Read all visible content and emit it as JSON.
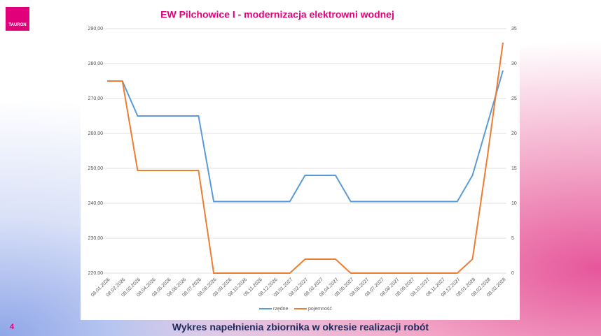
{
  "logo": "TAURON",
  "page_number": "4",
  "footer": "Wykres napełnienia zbiornika w okresie realizacji robót",
  "chart_data": {
    "type": "line",
    "title": "EW Pilchowice I - modernizacja elektrowni wodnej",
    "categories": [
      "08.01.2026",
      "08.02.2026",
      "08.03.2026",
      "08.04.2026",
      "08.05.2026",
      "08.06.2026",
      "08.07.2026",
      "08.08.2026",
      "08.09.2026",
      "08.10.2026",
      "08.11.2026",
      "08.12.2026",
      "08.01.2027",
      "08.02.2027",
      "08.03.2027",
      "08.04.2027",
      "08.05.2027",
      "08.06.2027",
      "08.07.2027",
      "08.08.2027",
      "08.09.2027",
      "08.10.2027",
      "08.11.2027",
      "08.12.2027",
      "08.01.2028",
      "08.02.2028",
      "08.03.2028"
    ],
    "series": [
      {
        "name": "rzędne",
        "color": "#5b9bd5",
        "values": [
          275,
          275,
          265,
          265,
          265,
          265,
          265,
          240.5,
          240.5,
          240.5,
          240.5,
          240.5,
          240.5,
          248,
          248,
          248,
          240.5,
          240.5,
          240.5,
          240.5,
          240.5,
          240.5,
          240.5,
          240.5,
          248,
          263,
          278
        ]
      },
      {
        "name": "pojemność",
        "color": "#ed7d31",
        "axis": "y2",
        "values": [
          27.5,
          27.5,
          14.7,
          14.7,
          14.7,
          14.7,
          14.7,
          0,
          0,
          0,
          0,
          0,
          0,
          2,
          2,
          2,
          0,
          0,
          0,
          0,
          0,
          0,
          0,
          0,
          2,
          17,
          33
        ]
      }
    ],
    "ylim": [
      220,
      290
    ],
    "yticks": [
      {
        "value": 220,
        "label": "220,00"
      },
      {
        "value": 230,
        "label": "230,00"
      },
      {
        "value": 240,
        "label": "240,00"
      },
      {
        "value": 250,
        "label": "250,00"
      },
      {
        "value": 260,
        "label": "260,00"
      },
      {
        "value": 270,
        "label": "270,00"
      },
      {
        "value": 280,
        "label": "280,00"
      },
      {
        "value": 290,
        "label": "290,00"
      }
    ],
    "y2lim": [
      0,
      35
    ],
    "y2ticks": [
      0,
      5,
      10,
      15,
      20,
      25,
      30,
      35
    ],
    "grid": true,
    "legend": "bottom"
  }
}
